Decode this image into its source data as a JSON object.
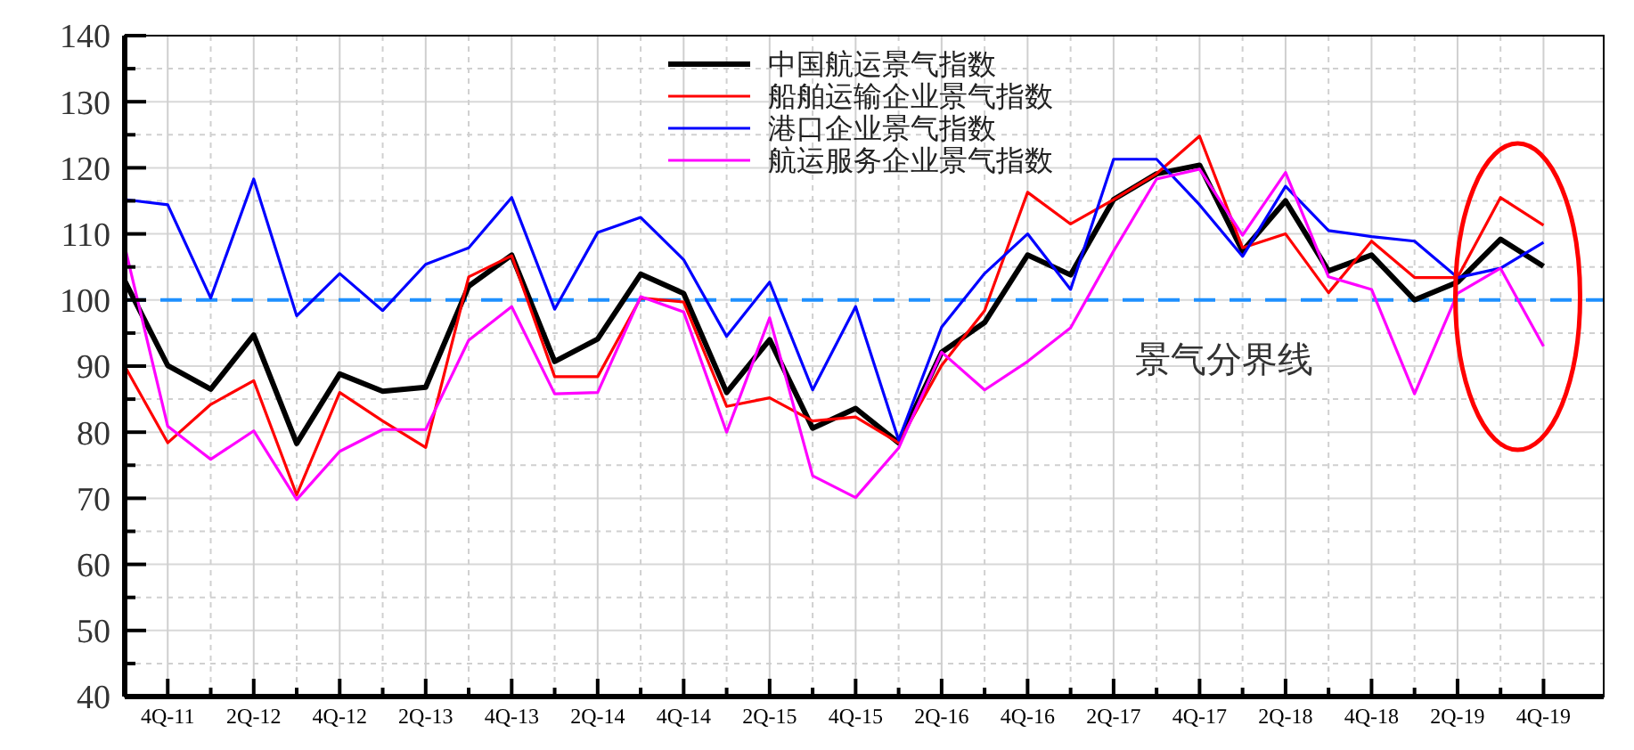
{
  "chart_data": {
    "type": "line",
    "categories": [
      null,
      "4Q-11",
      null,
      "2Q-12",
      null,
      "4Q-12",
      null,
      "2Q-13",
      null,
      "4Q-13",
      null,
      "2Q-14",
      null,
      "4Q-14",
      null,
      "2Q-15",
      null,
      "4Q-15",
      null,
      "2Q-16",
      null,
      "4Q-16",
      null,
      "2Q-17",
      null,
      "4Q-17",
      null,
      "2Q-18",
      null,
      "4Q-18",
      null,
      "2Q-19",
      null,
      "4Q-19"
    ],
    "series": [
      {
        "name": "中国航运景气指数",
        "color": "#000000",
        "values": [
          102.9,
          90.1,
          86.5,
          94.7,
          78.3,
          88.8,
          86.2,
          86.8,
          102.1,
          106.8,
          90.7,
          94.1,
          103.9,
          101,
          86,
          94,
          80.6,
          83.6,
          78.4,
          92.1,
          96.6,
          106.8,
          103.8,
          115.2,
          119.1,
          120.4,
          107.4,
          115,
          104.4,
          106.8,
          100,
          102.7,
          109.2,
          105.1
        ]
      },
      {
        "name": "船舶运输企业景气指数",
        "color": "#ff0000",
        "values": [
          90,
          78.4,
          84.2,
          87.8,
          70.5,
          86,
          81.7,
          77.7,
          103.5,
          106.7,
          88.4,
          88.4,
          100.3,
          99.7,
          83.9,
          85.2,
          81.7,
          82.3,
          78.4,
          90.1,
          98.4,
          116.3,
          111.5,
          115.2,
          119.1,
          124.8,
          107.9,
          110,
          101.1,
          108.9,
          103.4,
          103.4,
          115.5,
          111.3
        ]
      },
      {
        "name": "港口企业景气指数",
        "color": "#0000ff",
        "values": [
          115.2,
          114.4,
          100.3,
          118.3,
          97.6,
          104,
          98.4,
          105.4,
          107.9,
          115.5,
          98.6,
          110.2,
          112.5,
          106.1,
          94.5,
          102.7,
          86.4,
          99,
          78.8,
          95.9,
          104,
          110,
          101.6,
          121.3,
          121.3,
          114.4,
          106.6,
          117.2,
          110.5,
          109.6,
          108.9,
          103.4,
          104.8,
          108.7
        ]
      },
      {
        "name": "航运服务企业景气指数",
        "color": "#ff00ff",
        "values": [
          108.1,
          80.9,
          75.9,
          80.2,
          69.8,
          77.1,
          80.4,
          80.4,
          93.9,
          99,
          85.8,
          86,
          100.5,
          98.2,
          80,
          97.3,
          73.4,
          70.1,
          77.6,
          92.1,
          86.4,
          90.7,
          95.8,
          107.4,
          118.3,
          119.8,
          109.8,
          119.3,
          103.5,
          101.6,
          85.8,
          101,
          104.8,
          93
        ]
      }
    ],
    "ylim": [
      40,
      140
    ],
    "yticks": [
      40,
      {
        "value": 45,
        "label": null
      },
      50,
      {
        "value": 55,
        "label": null
      },
      60,
      {
        "value": 65,
        "label": null
      },
      70,
      {
        "value": 75,
        "label": null
      },
      80,
      {
        "value": 85,
        "label": null
      },
      90,
      {
        "value": 95,
        "label": null
      },
      100,
      {
        "value": 105,
        "label": null
      },
      110,
      {
        "value": 115,
        "label": null
      },
      120,
      {
        "value": 125,
        "label": null
      },
      130,
      {
        "value": 135,
        "label": null
      },
      140
    ],
    "ref_lines": [
      {
        "axis": "y",
        "value": 100,
        "label": "景气分界线",
        "color": "#1e90ff",
        "line_style": "dashed"
      }
    ],
    "grid": true,
    "legend": "top",
    "marker": "none",
    "line_style": "solid"
  }
}
